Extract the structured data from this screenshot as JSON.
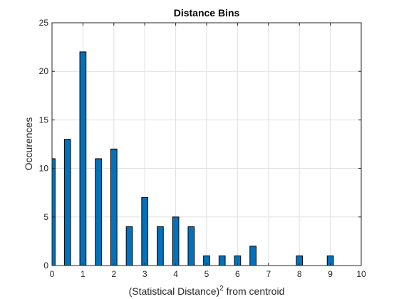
{
  "chart_data": {
    "type": "bar",
    "title": "Distance Bins",
    "xlabel": {
      "prefix": "(Statistical Distance)",
      "superscript": "2",
      "suffix": " from centroid"
    },
    "ylabel": "Occurences",
    "xlim": [
      0,
      10
    ],
    "ylim": [
      0,
      25
    ],
    "xticks": [
      0,
      1,
      2,
      3,
      4,
      5,
      6,
      7,
      8,
      9,
      10
    ],
    "yticks": [
      0,
      5,
      10,
      15,
      20,
      25
    ],
    "grid": true,
    "bar_color": "#0072BD",
    "bar_edge_color": "#000000",
    "bar_width": 0.2,
    "x": [
      0,
      0.5,
      1,
      1.5,
      2,
      2.5,
      3,
      3.5,
      4,
      4.5,
      5,
      5.5,
      6,
      6.5,
      8,
      9
    ],
    "values": [
      11,
      13,
      22,
      11,
      12,
      4,
      7,
      4,
      5,
      4,
      1,
      1,
      1,
      2,
      1,
      1
    ]
  }
}
